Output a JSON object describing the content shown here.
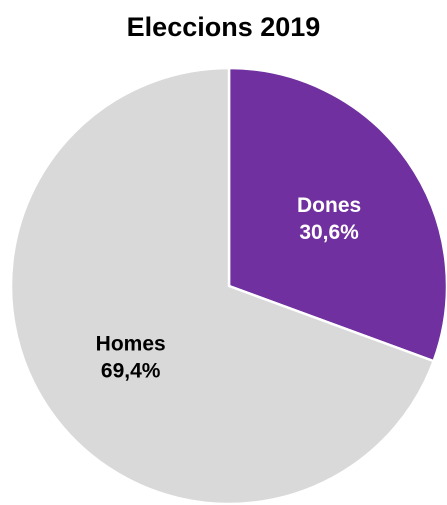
{
  "chart_data": {
    "type": "pie",
    "title": "Eleccions 2019",
    "slices": [
      {
        "label": "Dones",
        "value": 30.6,
        "value_label": "30,6%",
        "color": "#7030A0",
        "text_color": "#FFFFFF"
      },
      {
        "label": "Homes",
        "value": 69.4,
        "value_label": "69,4%",
        "color": "#D9D9D9",
        "text_color": "#000000"
      }
    ],
    "legend": "none",
    "start_angle_deg": 0,
    "direction": "clockwise"
  }
}
